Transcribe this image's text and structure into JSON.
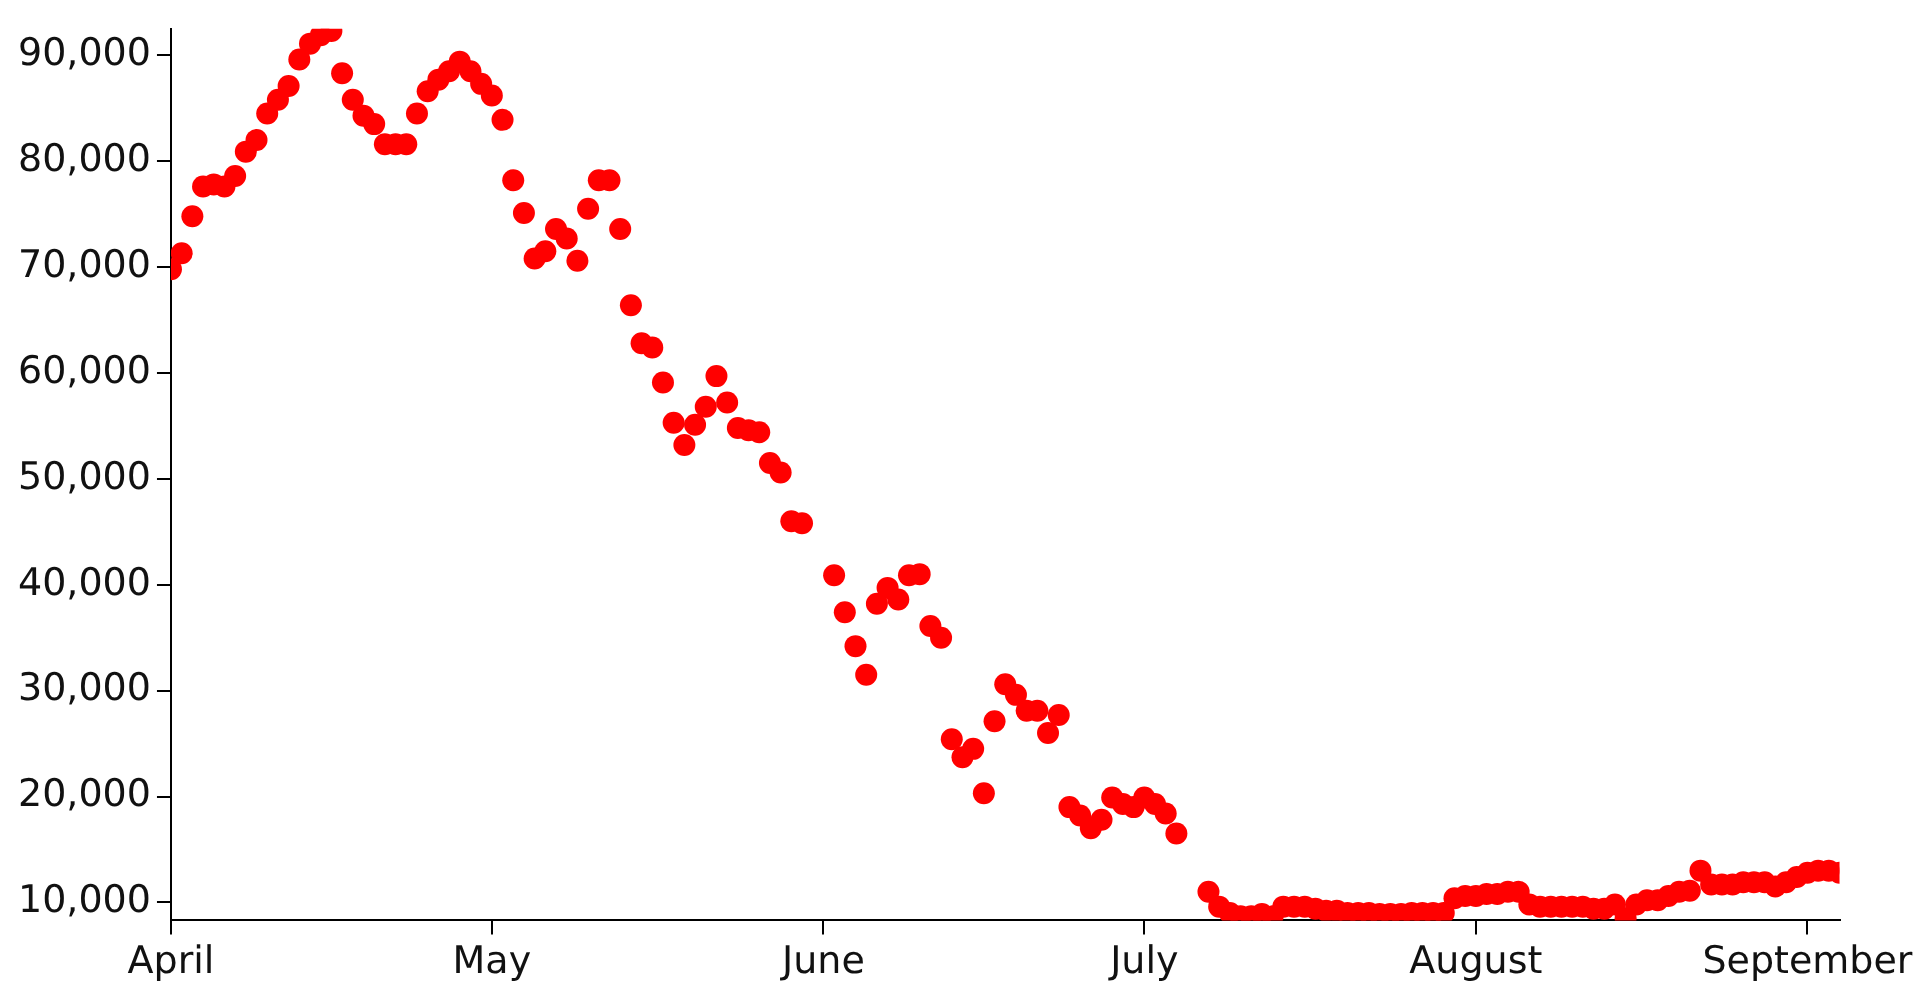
{
  "chart_data": {
    "type": "scatter",
    "marker": "circle",
    "grid": false,
    "legend": false,
    "xlim": [
      "--04-01",
      "--09-04"
    ],
    "xticks": [
      {
        "value": "--04-01",
        "label": "April"
      },
      {
        "value": "--05-01",
        "label": "May"
      },
      {
        "value": "--06-01",
        "label": "June"
      },
      {
        "value": "--07-01",
        "label": "July"
      },
      {
        "value": "--08-01",
        "label": "August"
      },
      {
        "value": "--09-01",
        "label": "September"
      }
    ],
    "ylim": [
      8300,
      92500
    ],
    "yticks": [
      {
        "value": 10000,
        "label": "10,000"
      },
      {
        "value": 20000,
        "label": "20,000"
      },
      {
        "value": 30000,
        "label": "30,000"
      },
      {
        "value": 40000,
        "label": "40,000"
      },
      {
        "value": 50000,
        "label": "50,000"
      },
      {
        "value": 60000,
        "label": "60,000"
      },
      {
        "value": 70000,
        "label": "70,000"
      },
      {
        "value": 80000,
        "label": "80,000"
      },
      {
        "value": 90000,
        "label": "90,000"
      }
    ],
    "series": [
      {
        "color": "#ff0000",
        "x": [
          "--04-01",
          "--04-02",
          "--04-03",
          "--04-04",
          "--04-05",
          "--04-06",
          "--04-07",
          "--04-08",
          "--04-09",
          "--04-10",
          "--04-11",
          "--04-12",
          "--04-13",
          "--04-14",
          "--04-15",
          "--04-16",
          "--04-17",
          "--04-18",
          "--04-19",
          "--04-20",
          "--04-21",
          "--04-22",
          "--04-23",
          "--04-24",
          "--04-25",
          "--04-26",
          "--04-27",
          "--04-28",
          "--04-29",
          "--04-30",
          "--05-01",
          "--05-02",
          "--05-03",
          "--05-04",
          "--05-05",
          "--05-06",
          "--05-07",
          "--05-08",
          "--05-09",
          "--05-10",
          "--05-11",
          "--05-12",
          "--05-13",
          "--05-14",
          "--05-15",
          "--05-16",
          "--05-17",
          "--05-18",
          "--05-19",
          "--05-20",
          "--05-21",
          "--05-22",
          "--05-23",
          "--05-24",
          "--05-25",
          "--05-26",
          "--05-27",
          "--05-28",
          "--05-29",
          "--05-30",
          "--06-02",
          "--06-03",
          "--06-04",
          "--06-05",
          "--06-06",
          "--06-07",
          "--06-08",
          "--06-09",
          "--06-10",
          "--06-11",
          "--06-12",
          "--06-13",
          "--06-14",
          "--06-15",
          "--06-16",
          "--06-17",
          "--06-18",
          "--06-19",
          "--06-20",
          "--06-21",
          "--06-22",
          "--06-23",
          "--06-24",
          "--06-25",
          "--06-26",
          "--06-27",
          "--06-28",
          "--06-29",
          "--06-30",
          "--07-01",
          "--07-02",
          "--07-03",
          "--07-04",
          "--07-07",
          "--07-08",
          "--07-09",
          "--07-10",
          "--07-11",
          "--07-12",
          "--07-13",
          "--07-14",
          "--07-15",
          "--07-16",
          "--07-17",
          "--07-18",
          "--07-19",
          "--07-20",
          "--07-21",
          "--07-22",
          "--07-23",
          "--07-24",
          "--07-25",
          "--07-26",
          "--07-27",
          "--07-28",
          "--07-29",
          "--07-30",
          "--07-31",
          "--08-01",
          "--08-02",
          "--08-03",
          "--08-04",
          "--08-05",
          "--08-06",
          "--08-07",
          "--08-08",
          "--08-09",
          "--08-10",
          "--08-11",
          "--08-12",
          "--08-13",
          "--08-14",
          "--08-15",
          "--08-16",
          "--08-17",
          "--08-18",
          "--08-19",
          "--08-20",
          "--08-21",
          "--08-22",
          "--08-23",
          "--08-24",
          "--08-25",
          "--08-26",
          "--08-27",
          "--08-28",
          "--08-29",
          "--08-30",
          "--08-31",
          "--09-01",
          "--09-02",
          "--09-03",
          "--09-04"
        ],
        "values": [
          69800,
          71300,
          74800,
          77600,
          77800,
          77600,
          78600,
          80900,
          82000,
          84500,
          85800,
          87100,
          89600,
          91100,
          91900,
          92300,
          88300,
          85800,
          84300,
          83500,
          81600,
          81600,
          81600,
          84500,
          86600,
          87700,
          88500,
          89400,
          88500,
          87300,
          86200,
          83900,
          78200,
          75100,
          70800,
          71500,
          73600,
          72700,
          70600,
          75500,
          78200,
          78200,
          73600,
          66400,
          62800,
          62400,
          59100,
          55300,
          53200,
          55100,
          56800,
          59700,
          57200,
          54800,
          54600,
          54400,
          51500,
          50600,
          46000,
          45800,
          40900,
          37400,
          34200,
          31500,
          38200,
          39700,
          38600,
          40900,
          41000,
          36100,
          35000,
          25400,
          23700,
          24500,
          20300,
          27100,
          30600,
          29600,
          28100,
          28100,
          26000,
          27700,
          19000,
          18200,
          17000,
          17800,
          19900,
          19300,
          19000,
          19900,
          19300,
          18400,
          16500,
          11000,
          9600,
          9000,
          8700,
          8700,
          8900,
          8700,
          9600,
          9600,
          9600,
          9400,
          9200,
          9200,
          9000,
          9000,
          9000,
          8900,
          8900,
          8900,
          9000,
          9000,
          9000,
          9000,
          10400,
          10600,
          10600,
          10800,
          10800,
          11000,
          11000,
          9800,
          9600,
          9600,
          9600,
          9600,
          9600,
          9400,
          9400,
          9800,
          8500,
          9800,
          10200,
          10200,
          10600,
          11000,
          11100,
          13000,
          11700,
          11700,
          11700,
          11900,
          11900,
          11900,
          11500,
          11900,
          12400,
          12800,
          13000,
          13000,
          12800
        ]
      }
    ]
  }
}
